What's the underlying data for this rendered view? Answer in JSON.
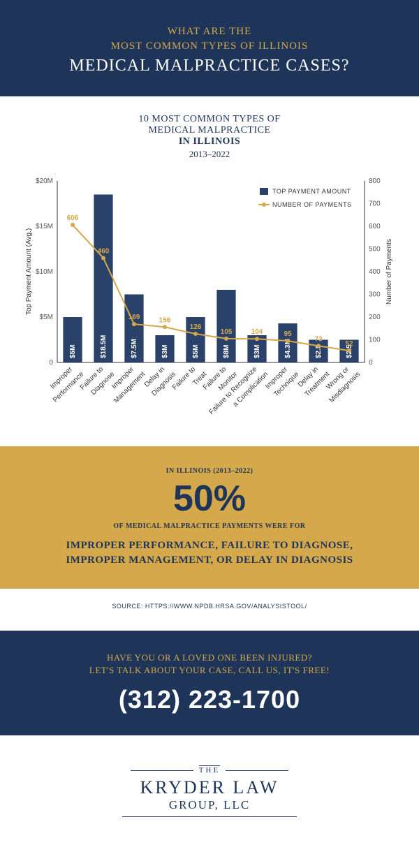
{
  "header": {
    "line1": "WHAT ARE THE",
    "line2": "MOST COMMON TYPES OF ILLINOIS",
    "main": "MEDICAL MALPRACTICE CASES?"
  },
  "chart": {
    "title_line1": "10 MOST COMMON TYPES OF",
    "title_line2": "MEDICAL MALPRACTICE",
    "title_line3": "IN ILLINOIS",
    "title_line4": "2013–2022",
    "type": "bar+line",
    "y_left": {
      "label": "Top Payment Amount (Avg.)",
      "min": 0,
      "max": 20,
      "ticks": [
        0,
        5,
        10,
        15,
        20
      ],
      "tick_labels": [
        "0",
        "$5M",
        "$10M",
        "$15M",
        "$20M"
      ]
    },
    "y_right": {
      "label": "Number of Payments",
      "min": 0,
      "max": 800,
      "ticks": [
        0,
        100,
        200,
        300,
        400,
        500,
        600,
        700,
        800
      ],
      "tick_labels": [
        "0",
        "100",
        "200",
        "300",
        "400",
        "500",
        "600",
        "700",
        "800"
      ]
    },
    "categories": [
      "Improper\nPerformance",
      "Failure to\nDiagnose",
      "Improper\nManagement",
      "Delay in\nDiagnosis",
      "Failure to\nTreat",
      "Failure to\nMonitor",
      "Failure to Recognize\na Complication",
      "Improper\nTechnique",
      "Delay in\nTreatment",
      "Wrong or\nMisdiagnosis"
    ],
    "bars": {
      "values": [
        5,
        18.5,
        7.5,
        3,
        5,
        8,
        3,
        4.3,
        2.5,
        2.5
      ],
      "labels": [
        "$5M",
        "$18.5M",
        "$7.5M",
        "$3M",
        "$5M",
        "$8M",
        "$3M",
        "$4.3M",
        "$2.5",
        "$2.5"
      ],
      "color": "#2a4269"
    },
    "line": {
      "values": [
        606,
        460,
        169,
        156,
        126,
        105,
        104,
        95,
        73,
        52
      ],
      "labels": [
        "606",
        "460",
        "169",
        "156",
        "126",
        "105",
        "104",
        "95",
        "73",
        "52"
      ],
      "color": "#d4a84b"
    },
    "legend": {
      "bar": "TOP PAYMENT AMOUNT",
      "line": "NUMBER OF PAYMENTS"
    },
    "background_color": "#ffffff",
    "grid_color": "#e0e0e0"
  },
  "stat": {
    "pre": "IN ILLINOIS (2013–2022)",
    "big": "50%",
    "sub": "OF MEDICAL MALPRACTICE PAYMENTS WERE FOR",
    "list1": "IMPROPER PERFORMANCE, FAILURE TO DIAGNOSE,",
    "list2": "IMPROPER MANAGEMENT, OR DELAY IN DIAGNOSIS"
  },
  "source": "SOURCE: HTTPS://WWW.NPDB.HRSA.GOV/ANALYSISTOOL/",
  "cta": {
    "line1": "HAVE YOU OR A LOVED ONE BEEN INJURED?",
    "line2": "LET'S TALK ABOUT YOUR CASE, CALL US, IT'S FREE!",
    "phone": "(312) 223-1700"
  },
  "logo": {
    "the": "THE",
    "main": "KRYDER LAW",
    "sub": "GROUP, LLC"
  }
}
